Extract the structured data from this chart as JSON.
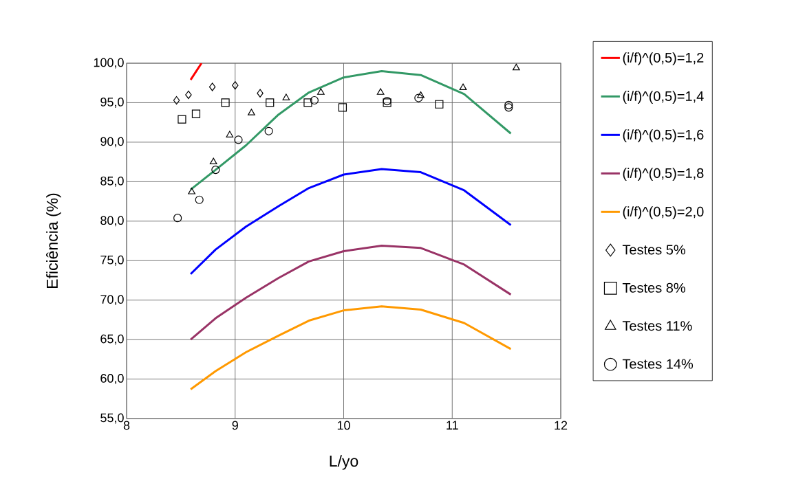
{
  "chart_data": {
    "type": "line",
    "xlabel": "L/yo",
    "ylabel": "Eficiência (%)",
    "x": [
      8.59,
      8.82,
      9.1,
      9.4,
      9.68,
      10.0,
      10.35,
      10.71,
      11.11,
      11.54
    ],
    "xlim": [
      8,
      12
    ],
    "xticks": [
      8,
      9,
      10,
      11,
      12
    ],
    "ylim": [
      55,
      100
    ],
    "yticks": [
      {
        "value": 55,
        "label": "55,0"
      },
      {
        "value": 60,
        "label": "60,0"
      },
      {
        "value": 65,
        "label": "65,0"
      },
      {
        "value": 70,
        "label": "70,0"
      },
      {
        "value": 75,
        "label": "75,0"
      },
      {
        "value": 80,
        "label": "80,0"
      },
      {
        "value": 85,
        "label": "85,0"
      },
      {
        "value": 90,
        "label": "90,0"
      },
      {
        "value": 95,
        "label": "95,0"
      },
      {
        "value": 100,
        "label": "100,0"
      }
    ],
    "grid": true,
    "legend": "right",
    "marker": "none",
    "line_style": "solid",
    "series": [
      {
        "name": "(i/f)^(0,5)=1,2",
        "color": "#ff0000",
        "x": [
          8.59,
          8.69
        ],
        "values": [
          97.9,
          100.0
        ]
      },
      {
        "name": "(i/f)^(0,5)=1,4",
        "color": "#339966",
        "values": [
          84.0,
          86.5,
          89.6,
          93.5,
          96.3,
          98.2,
          99.0,
          98.5,
          96.1,
          91.1
        ]
      },
      {
        "name": "(i/f)^(0,5)=1,6",
        "color": "#0000ff",
        "values": [
          73.3,
          76.4,
          79.3,
          81.9,
          84.2,
          85.9,
          86.6,
          86.2,
          83.9,
          79.5
        ]
      },
      {
        "name": "(i/f)^(0,5)=1,8",
        "color": "#993366",
        "values": [
          65.0,
          67.7,
          70.3,
          72.8,
          74.9,
          76.2,
          76.9,
          76.6,
          74.5,
          70.7
        ]
      },
      {
        "name": "(i/f)^(0,5)=2,0",
        "color": "#ff9900",
        "values": [
          58.7,
          61.0,
          63.4,
          65.5,
          67.4,
          68.7,
          69.2,
          68.8,
          67.1,
          63.8
        ]
      },
      {
        "name": "Testes 5%",
        "type": "scatter",
        "marker": "diamond",
        "color": "#000000",
        "x": [
          8.46,
          8.57,
          8.79,
          9.0,
          9.23
        ],
        "values": [
          95.3,
          96.0,
          97.0,
          97.2,
          96.2
        ]
      },
      {
        "name": "Testes 8%",
        "type": "scatter",
        "marker": "square",
        "color": "#000000",
        "x": [
          8.51,
          8.64,
          8.91,
          9.32,
          9.67,
          9.99,
          10.4,
          10.88
        ],
        "values": [
          92.9,
          93.6,
          95.0,
          95.0,
          95.0,
          94.4,
          95.0,
          94.8
        ]
      },
      {
        "name": "Testes 11%",
        "type": "scatter",
        "marker": "triangle",
        "color": "#000000",
        "x": [
          8.6,
          8.8,
          8.95,
          9.15,
          9.47,
          9.79,
          10.34,
          10.71,
          11.1,
          11.59
        ],
        "values": [
          83.7,
          87.5,
          90.9,
          93.7,
          95.6,
          96.3,
          96.3,
          95.9,
          96.9,
          99.4
        ]
      },
      {
        "name": "Testes 14%",
        "type": "scatter",
        "marker": "circle",
        "color": "#000000",
        "x": [
          8.47,
          8.67,
          8.82,
          9.03,
          9.31,
          9.73,
          10.4,
          10.69,
          11.52,
          11.52
        ],
        "values": [
          80.4,
          82.7,
          86.5,
          90.3,
          91.4,
          95.3,
          95.2,
          95.6,
          94.7,
          94.4
        ]
      }
    ]
  }
}
